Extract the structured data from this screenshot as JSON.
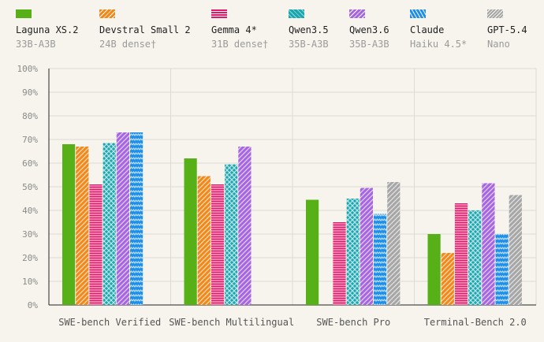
{
  "chart_data": {
    "type": "bar",
    "categories": [
      "SWE-bench Verified",
      "SWE-bench Multilingual",
      "SWE-bench Pro",
      "Terminal-Bench 2.0"
    ],
    "yticks": [
      "0%",
      "10%",
      "20%",
      "30%",
      "40%",
      "50%",
      "60%",
      "70%",
      "80%",
      "90%",
      "100%"
    ],
    "ylim": [
      0,
      100
    ],
    "grid": true,
    "legend_position": "top",
    "series": [
      {
        "name": "Laguna XS.2",
        "sub": "33B-A3B",
        "color": "#58b019",
        "pattern": "solid",
        "values": [
          68,
          62,
          44.5,
          30
        ]
      },
      {
        "name": "Devstral Small 2",
        "sub": "24B dense†",
        "color": "#f0891a",
        "pattern": "diag",
        "values": [
          67,
          54.5,
          null,
          22
        ]
      },
      {
        "name": "Gemma 4*",
        "sub": "31B dense†",
        "color": "#e0196b",
        "pattern": "horiz",
        "values": [
          51,
          51,
          35,
          43
        ]
      },
      {
        "name": "Qwen3.5",
        "sub": "35B-A3B",
        "color": "#19a6ae",
        "pattern": "cross",
        "values": [
          68.5,
          59.5,
          45,
          40
        ]
      },
      {
        "name": "Qwen3.6",
        "sub": "35B-A3B",
        "color": "#a666e0",
        "pattern": "diag",
        "values": [
          73,
          67,
          49.5,
          51.5
        ]
      },
      {
        "name": "Claude",
        "sub": "Haiku 4.5*",
        "color": "#1f8fe8",
        "pattern": "zigzag",
        "values": [
          73,
          null,
          38.5,
          30
        ]
      },
      {
        "name": "GPT-5.4",
        "sub": "Nano",
        "color": "#a6a6a6",
        "pattern": "diag-dense",
        "values": [
          null,
          null,
          52,
          46.5
        ]
      }
    ]
  }
}
